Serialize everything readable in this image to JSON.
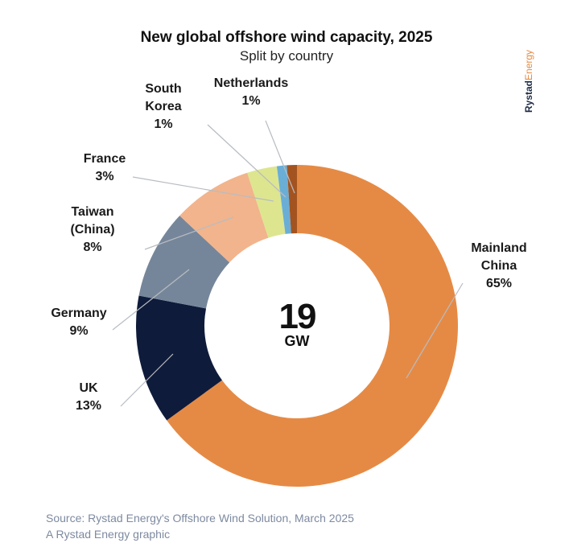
{
  "header": {
    "title": "New global offshore wind capacity, 2025",
    "subtitle": "Split by country"
  },
  "brand": {
    "part1": "Rystad",
    "part2": "Energy"
  },
  "chart_data": {
    "type": "pie",
    "donut": true,
    "title": "New global offshore wind capacity, 2025",
    "subtitle": "Split by country",
    "center_label": {
      "value": "19",
      "unit": "GW"
    },
    "slices": [
      {
        "name": "Mainland China",
        "label_lines": [
          "Mainland",
          "China"
        ],
        "value": 65,
        "pct": "65%",
        "color": "#e58a45"
      },
      {
        "name": "UK",
        "label_lines": [
          "UK"
        ],
        "value": 13,
        "pct": "13%",
        "color": "#0f1b3a"
      },
      {
        "name": "Germany",
        "label_lines": [
          "Germany"
        ],
        "value": 9,
        "pct": "9%",
        "color": "#76869a"
      },
      {
        "name": "Taiwan (China)",
        "label_lines": [
          "Taiwan",
          "(China)"
        ],
        "value": 8,
        "pct": "8%",
        "color": "#f2b48c"
      },
      {
        "name": "France",
        "label_lines": [
          "France"
        ],
        "value": 3,
        "pct": "3%",
        "color": "#dde68f"
      },
      {
        "name": "South Korea",
        "label_lines": [
          "South",
          "Korea"
        ],
        "value": 1,
        "pct": "1%",
        "color": "#6aaed6"
      },
      {
        "name": "Netherlands",
        "label_lines": [
          "Netherlands"
        ],
        "value": 1,
        "pct": "1%",
        "color": "#a3531f"
      }
    ],
    "legend": "none"
  },
  "footer": {
    "source": "Source: Rystad Energy's Offshore Wind Solution, March 2025",
    "credit": "A Rystad Energy graphic"
  }
}
